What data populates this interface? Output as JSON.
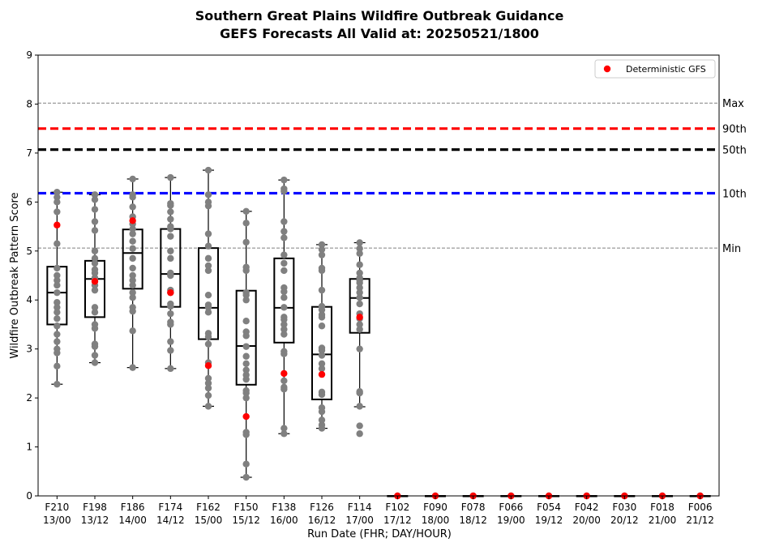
{
  "chart_data": {
    "type": "box",
    "title_line1": "Southern Great Plains Wildfire Outbreak Guidance",
    "title_line2": "GEFS Forecasts All Valid at: 20250521/1800",
    "xlabel": "Run Date (FHR; DAY/HOUR)",
    "ylabel": "Wildfire Outbreak Pattern Score",
    "ylim": [
      0,
      9
    ],
    "yticks": [
      "0",
      "1",
      "2",
      "3",
      "4",
      "5",
      "6",
      "7",
      "8",
      "9"
    ],
    "categories": [
      {
        "fhr": "F210",
        "date": "13/00"
      },
      {
        "fhr": "F198",
        "date": "13/12"
      },
      {
        "fhr": "F186",
        "date": "14/00"
      },
      {
        "fhr": "F174",
        "date": "14/12"
      },
      {
        "fhr": "F162",
        "date": "15/00"
      },
      {
        "fhr": "F150",
        "date": "15/12"
      },
      {
        "fhr": "F138",
        "date": "16/00"
      },
      {
        "fhr": "F126",
        "date": "16/12"
      },
      {
        "fhr": "F114",
        "date": "17/00"
      },
      {
        "fhr": "F102",
        "date": "17/12"
      },
      {
        "fhr": "F090",
        "date": "18/00"
      },
      {
        "fhr": "F078",
        "date": "18/12"
      },
      {
        "fhr": "F066",
        "date": "19/00"
      },
      {
        "fhr": "F054",
        "date": "19/12"
      },
      {
        "fhr": "F042",
        "date": "20/00"
      },
      {
        "fhr": "F030",
        "date": "20/12"
      },
      {
        "fhr": "F018",
        "date": "21/00"
      },
      {
        "fhr": "F006",
        "date": "21/12"
      }
    ],
    "boxes": [
      {
        "wlo": 2.28,
        "q1": 3.5,
        "med": 4.15,
        "q3": 4.68,
        "whi": 6.2
      },
      {
        "wlo": 2.72,
        "q1": 3.65,
        "med": 4.43,
        "q3": 4.8,
        "whi": 6.15
      },
      {
        "wlo": 2.62,
        "q1": 4.23,
        "med": 4.96,
        "q3": 5.44,
        "whi": 6.47
      },
      {
        "wlo": 2.6,
        "q1": 3.86,
        "med": 4.53,
        "q3": 5.45,
        "whi": 6.5
      },
      {
        "wlo": 1.83,
        "q1": 3.2,
        "med": 3.84,
        "q3": 5.06,
        "whi": 6.65
      },
      {
        "wlo": 0.38,
        "q1": 2.27,
        "med": 3.06,
        "q3": 4.19,
        "whi": 5.81
      },
      {
        "wlo": 1.27,
        "q1": 3.13,
        "med": 3.84,
        "q3": 4.85,
        "whi": 6.45
      },
      {
        "wlo": 1.38,
        "q1": 1.97,
        "med": 2.89,
        "q3": 3.86,
        "whi": 5.13
      },
      {
        "wlo": 1.82,
        "q1": 3.33,
        "med": 4.04,
        "q3": 4.43,
        "whi": 5.17
      },
      {
        "wlo": 0,
        "q1": 0,
        "med": 0,
        "q3": 0,
        "whi": 0
      },
      {
        "wlo": 0,
        "q1": 0,
        "med": 0,
        "q3": 0,
        "whi": 0
      },
      {
        "wlo": 0,
        "q1": 0,
        "med": 0,
        "q3": 0,
        "whi": 0
      },
      {
        "wlo": 0,
        "q1": 0,
        "med": 0,
        "q3": 0,
        "whi": 0
      },
      {
        "wlo": 0,
        "q1": 0,
        "med": 0,
        "q3": 0,
        "whi": 0
      },
      {
        "wlo": 0,
        "q1": 0,
        "med": 0,
        "q3": 0,
        "whi": 0
      },
      {
        "wlo": 0,
        "q1": 0,
        "med": 0,
        "q3": 0,
        "whi": 0
      },
      {
        "wlo": 0,
        "q1": 0,
        "med": 0,
        "q3": 0,
        "whi": 0
      },
      {
        "wlo": 0,
        "q1": 0,
        "med": 0,
        "q3": 0,
        "whi": 0
      }
    ],
    "members": [
      [
        6.2,
        6.1,
        6.0,
        5.8,
        5.15,
        4.65,
        4.5,
        4.4,
        4.3,
        4.15,
        3.95,
        3.85,
        3.75,
        3.62,
        3.47,
        3.3,
        3.15,
        3.0,
        2.92,
        2.65,
        2.28
      ],
      [
        6.15,
        6.05,
        5.85,
        5.6,
        5.42,
        5.0,
        4.85,
        4.75,
        4.62,
        4.55,
        4.45,
        4.3,
        4.2,
        3.85,
        3.75,
        3.5,
        3.42,
        3.1,
        3.05,
        2.87,
        2.72
      ],
      [
        6.47,
        6.15,
        6.1,
        5.9,
        5.7,
        5.55,
        5.45,
        5.35,
        5.2,
        5.05,
        4.85,
        4.65,
        4.5,
        4.4,
        4.3,
        4.15,
        4.05,
        3.85,
        3.77,
        3.37,
        2.62
      ],
      [
        6.5,
        5.97,
        5.93,
        5.8,
        5.65,
        5.5,
        5.45,
        5.3,
        5.0,
        4.85,
        4.55,
        4.5,
        4.2,
        4.15,
        3.92,
        3.87,
        3.72,
        3.55,
        3.5,
        3.15,
        2.97,
        2.6
      ],
      [
        6.65,
        6.15,
        6.0,
        5.92,
        5.35,
        5.1,
        4.85,
        4.7,
        4.6,
        4.1,
        3.9,
        3.85,
        3.75,
        3.32,
        3.25,
        3.1,
        2.72,
        2.4,
        2.3,
        2.2,
        2.05,
        1.83
      ],
      [
        5.81,
        5.57,
        5.18,
        4.67,
        4.6,
        4.15,
        4.1,
        4.0,
        3.57,
        3.35,
        3.27,
        3.05,
        2.85,
        2.7,
        2.57,
        2.47,
        2.38,
        2.15,
        2.1,
        2.0,
        1.3,
        1.25,
        0.65,
        0.38
      ],
      [
        6.45,
        6.27,
        6.22,
        5.6,
        5.4,
        5.27,
        4.92,
        4.75,
        4.6,
        4.25,
        4.17,
        4.05,
        3.85,
        3.65,
        3.6,
        3.5,
        3.4,
        3.3,
        2.95,
        2.9,
        2.35,
        2.22,
        2.18,
        1.38,
        1.27
      ],
      [
        5.13,
        5.03,
        4.92,
        4.65,
        4.6,
        4.2,
        3.87,
        3.8,
        3.7,
        3.65,
        3.47,
        3.02,
        2.97,
        2.87,
        2.7,
        2.6,
        2.12,
        2.07,
        1.8,
        1.72,
        1.55,
        1.45,
        1.38
      ],
      [
        5.17,
        5.05,
        4.95,
        4.72,
        4.55,
        4.45,
        4.4,
        4.35,
        4.25,
        4.15,
        4.05,
        3.92,
        3.72,
        3.62,
        3.5,
        3.4,
        3.0,
        2.13,
        2.1,
        1.83,
        1.43,
        1.27
      ],
      [
        0
      ],
      [
        0
      ],
      [
        0
      ],
      [
        0
      ],
      [
        0
      ],
      [
        0
      ],
      [
        0
      ],
      [
        0
      ],
      [
        0
      ]
    ],
    "deterministic": [
      5.53,
      4.38,
      5.62,
      4.15,
      2.66,
      1.62,
      2.5,
      2.48,
      3.65,
      0,
      0,
      0,
      0,
      0,
      0,
      0,
      0,
      0
    ],
    "reference_lines": [
      {
        "label": "Max",
        "value": 8.02,
        "color": "#808080",
        "style": "dashed-thin"
      },
      {
        "label": "90th",
        "value": 7.5,
        "color": "#ff0000",
        "style": "dashed-thick"
      },
      {
        "label": "50th",
        "value": 7.07,
        "color": "#000000",
        "style": "dashed-thick"
      },
      {
        "label": "10th",
        "value": 6.18,
        "color": "#0000ff",
        "style": "dashed-thick"
      },
      {
        "label": "Min",
        "value": 5.06,
        "color": "#808080",
        "style": "dashed-thin"
      }
    ],
    "legend": {
      "label": "Deterministic GFS",
      "placement": "top-right"
    },
    "colors": {
      "members": "#808080",
      "deterministic": "#ff0000",
      "box": "#000000"
    }
  }
}
